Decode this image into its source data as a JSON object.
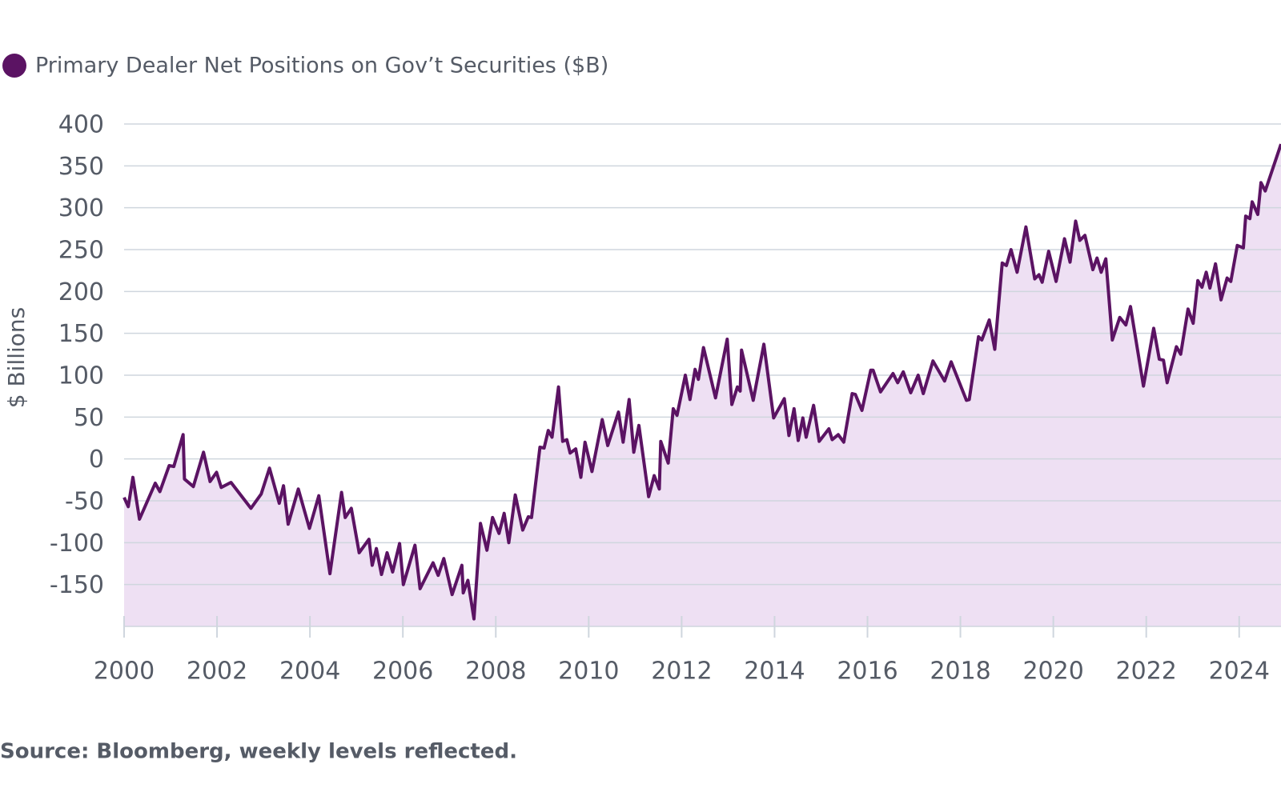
{
  "chart_data": {
    "type": "line",
    "legend_label": "Primary Dealer Net Positions on Gov’t Securities ($B)",
    "ylabel": "$ Billions",
    "source": "Source: Bloomberg, weekly levels reflected.",
    "color": "#5b1363",
    "fill_color": "#eee0f3",
    "grid": true,
    "xlim": [
      2000,
      2024.9
    ],
    "xticks": [
      2000,
      2002,
      2004,
      2006,
      2008,
      2010,
      2012,
      2014,
      2016,
      2018,
      2020,
      2022,
      2024
    ],
    "ylim": [
      -200,
      400
    ],
    "yticks": [
      -150,
      -100,
      -50,
      0,
      50,
      100,
      150,
      200,
      250,
      300,
      350,
      400
    ],
    "x": [
      2000.0,
      2000.09,
      2000.19,
      2000.33,
      2000.67,
      2000.77,
      2000.97,
      2001.07,
      2001.27,
      2001.3,
      2001.49,
      2001.71,
      2001.85,
      2001.99,
      2002.09,
      2002.3,
      2002.73,
      2002.95,
      2003.13,
      2003.34,
      2003.43,
      2003.53,
      2003.75,
      2003.99,
      2004.19,
      2004.43,
      2004.68,
      2004.76,
      2004.89,
      2005.06,
      2005.27,
      2005.34,
      2005.43,
      2005.54,
      2005.66,
      2005.78,
      2005.93,
      2006.01,
      2006.26,
      2006.37,
      2006.65,
      2006.76,
      2006.88,
      2007.06,
      2007.27,
      2007.3,
      2007.4,
      2007.53,
      2007.67,
      2007.81,
      2007.93,
      2008.07,
      2008.18,
      2008.28,
      2008.42,
      2008.58,
      2008.7,
      2008.77,
      2008.95,
      2009.04,
      2009.13,
      2009.21,
      2009.35,
      2009.44,
      2009.53,
      2009.6,
      2009.72,
      2009.83,
      2009.92,
      2010.07,
      2010.29,
      2010.41,
      2010.64,
      2010.74,
      2010.87,
      2010.97,
      2011.08,
      2011.29,
      2011.41,
      2011.52,
      2011.55,
      2011.71,
      2011.82,
      2011.9,
      2012.08,
      2012.18,
      2012.29,
      2012.36,
      2012.47,
      2012.73,
      2012.98,
      2013.08,
      2013.2,
      2013.26,
      2013.29,
      2013.54,
      2013.77,
      2013.98,
      2014.21,
      2014.31,
      2014.42,
      2014.51,
      2014.61,
      2014.68,
      2014.84,
      2014.96,
      2015.17,
      2015.24,
      2015.37,
      2015.49,
      2015.67,
      2015.74,
      2015.88,
      2016.07,
      2016.12,
      2016.28,
      2016.55,
      2016.65,
      2016.77,
      2016.93,
      2017.09,
      2017.2,
      2017.41,
      2017.66,
      2017.8,
      2018.13,
      2018.19,
      2018.39,
      2018.46,
      2018.62,
      2018.74,
      2018.9,
      2018.99,
      2019.09,
      2019.22,
      2019.41,
      2019.6,
      2019.69,
      2019.76,
      2019.9,
      2020.06,
      2020.24,
      2020.36,
      2020.48,
      2020.57,
      2020.68,
      2020.85,
      2020.94,
      2021.03,
      2021.13,
      2021.27,
      2021.43,
      2021.56,
      2021.66,
      2021.94,
      2022.16,
      2022.28,
      2022.37,
      2022.45,
      2022.65,
      2022.74,
      2022.9,
      2023.01,
      2023.11,
      2023.2,
      2023.29,
      2023.37,
      2023.49,
      2023.61,
      2023.74,
      2023.82,
      2023.96,
      2024.09,
      2024.14,
      2024.23,
      2024.28,
      2024.4,
      2024.47,
      2024.56,
      2024.9
    ],
    "values": [
      -46,
      -57,
      -22,
      -72,
      -29,
      -39,
      -8,
      -9,
      29,
      -24,
      -33,
      8,
      -27,
      -16,
      -34,
      -28,
      -59,
      -42,
      -11,
      -53,
      -32,
      -78,
      -36,
      -83,
      -44,
      -137,
      -40,
      -70,
      -59,
      -112,
      -96,
      -127,
      -107,
      -138,
      -112,
      -135,
      -101,
      -150,
      -103,
      -155,
      -124,
      -139,
      -119,
      -162,
      -127,
      -160,
      -145,
      -191,
      -77,
      -109,
      -70,
      -89,
      -65,
      -100,
      -43,
      -85,
      -69,
      -70,
      14,
      13,
      34,
      26,
      86,
      21,
      23,
      7,
      12,
      -22,
      20,
      -15,
      47,
      16,
      56,
      20,
      71,
      8,
      40,
      -45,
      -20,
      -36,
      21,
      -5,
      60,
      52,
      100,
      71,
      107,
      95,
      133,
      73,
      143,
      65,
      86,
      81,
      130,
      70,
      137,
      49,
      72,
      28,
      60,
      22,
      49,
      26,
      64,
      21,
      36,
      23,
      29,
      20,
      78,
      77,
      58,
      106,
      106,
      80,
      102,
      91,
      104,
      79,
      100,
      78,
      117,
      93,
      116,
      70,
      71,
      146,
      142,
      166,
      131,
      234,
      231,
      250,
      223,
      277,
      215,
      220,
      211,
      248,
      212,
      263,
      235,
      284,
      261,
      267,
      226,
      240,
      223,
      239,
      142,
      169,
      160,
      182,
      87,
      156,
      119,
      118,
      91,
      134,
      125,
      179,
      162,
      213,
      205,
      223,
      204,
      233,
      190,
      216,
      212,
      255,
      252,
      290,
      287,
      307,
      292,
      330,
      320,
      376
    ]
  }
}
